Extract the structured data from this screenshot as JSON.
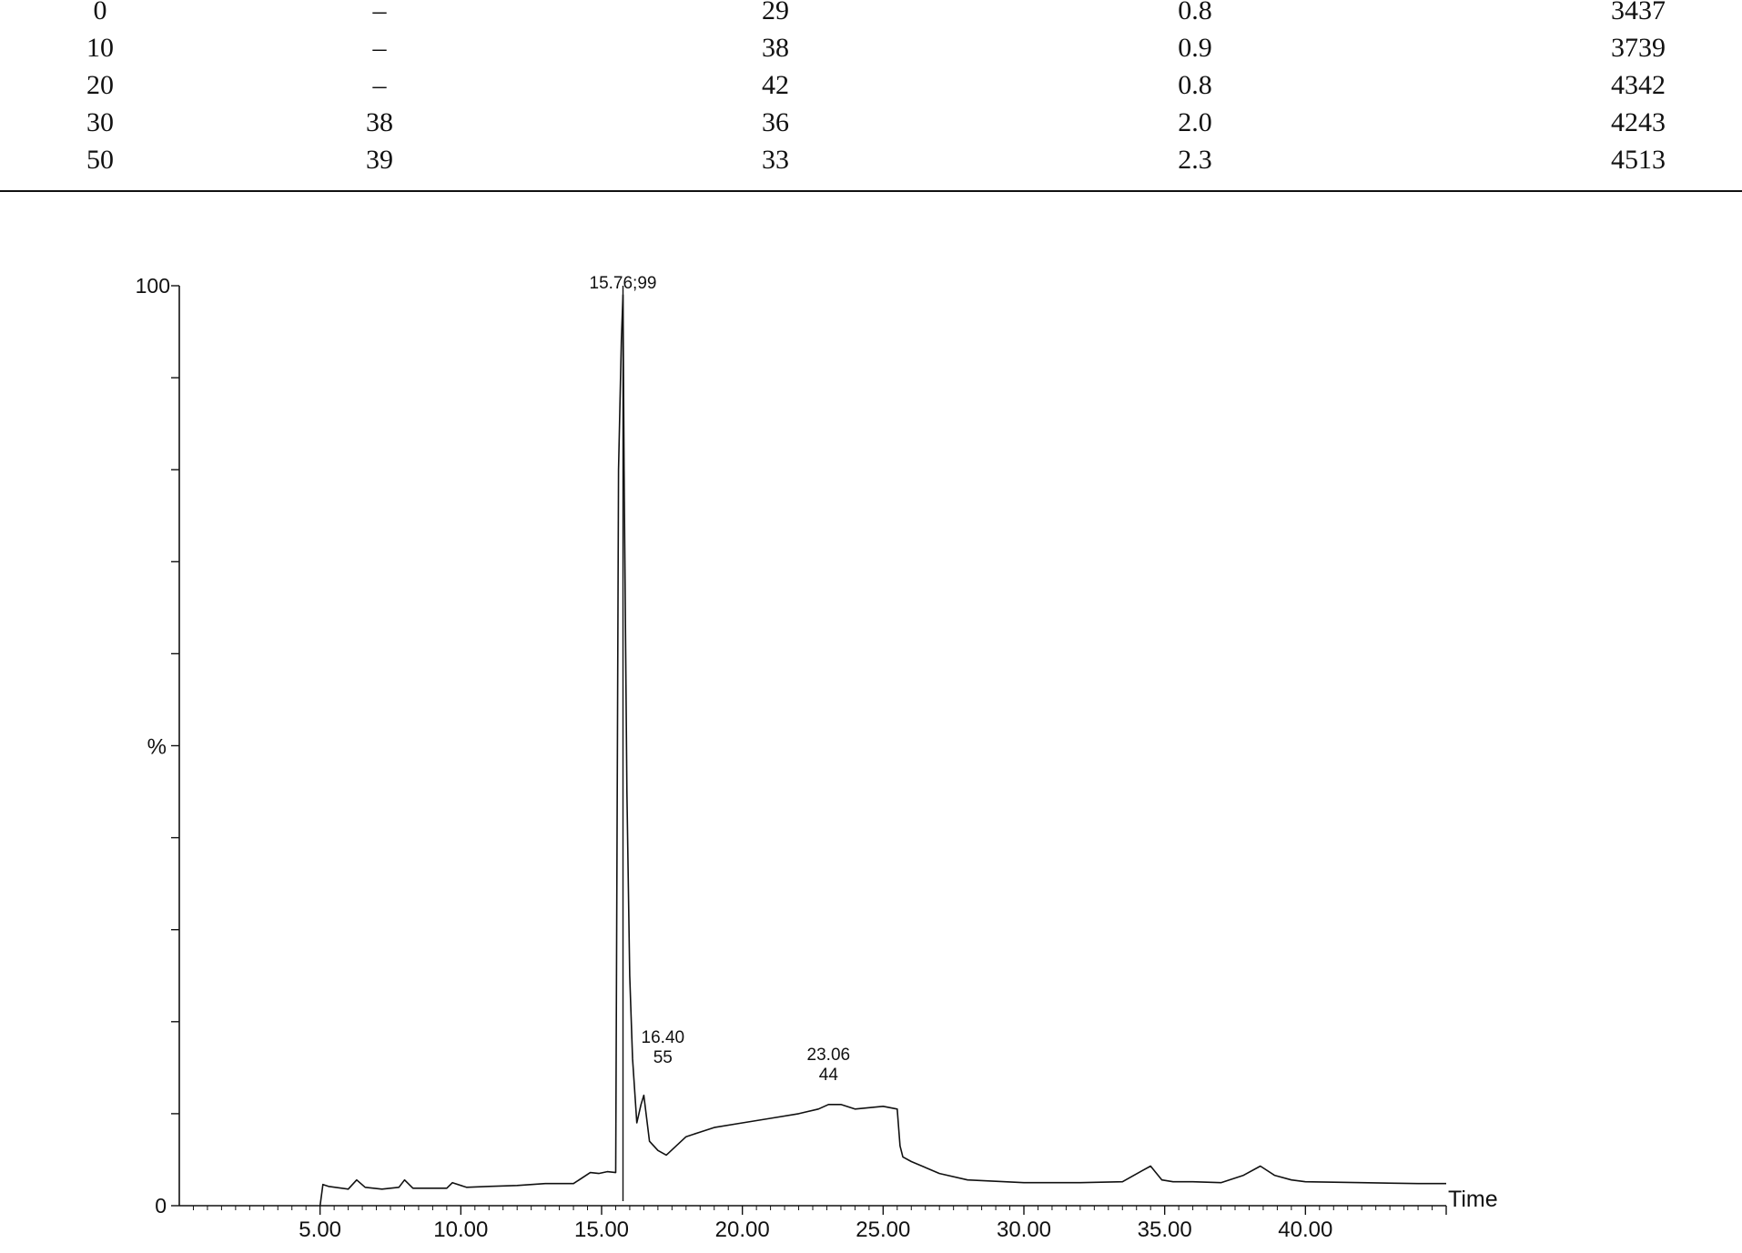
{
  "table": {
    "rows": [
      [
        "0",
        "–",
        "29",
        "0.8",
        "3437"
      ],
      [
        "10",
        "–",
        "38",
        "0.9",
        "3739"
      ],
      [
        "20",
        "–",
        "42",
        "0.8",
        "4342"
      ],
      [
        "30",
        "38",
        "36",
        "2.0",
        "4243"
      ],
      [
        "50",
        "39",
        "33",
        "2.3",
        "4513"
      ]
    ]
  },
  "chart_data": {
    "type": "line",
    "title": "",
    "xlabel": "Time",
    "ylabel": "%",
    "xlim": [
      0,
      45
    ],
    "ylim": [
      0,
      100
    ],
    "x_ticks": [
      "5.00",
      "10.00",
      "15.00",
      "20.00",
      "25.00",
      "30.00",
      "35.00",
      "40.00"
    ],
    "y_ticks": [
      "0",
      "100"
    ],
    "grid": false,
    "series": [
      {
        "x": [
          5.0,
          5.1,
          5.3,
          6.0,
          6.3,
          6.6,
          7.2,
          7.8,
          8.0,
          8.3,
          9.5,
          9.7,
          10.2,
          11,
          12,
          13,
          14,
          14.6,
          14.9,
          15.2,
          15.5,
          15.6,
          15.7,
          15.76,
          15.8,
          15.9,
          16.0,
          16.1,
          16.25,
          16.4,
          16.5,
          16.7,
          17.0,
          17.3,
          18.0,
          18.5,
          19.0,
          20.0,
          21.0,
          22.0,
          22.7,
          23.06,
          23.5,
          24.0,
          25.0,
          25.5,
          25.6,
          25.7,
          26.0,
          27.0,
          28.0,
          30.0,
          32.0,
          33.5,
          34.2,
          34.5,
          34.9,
          35.3,
          36.0,
          37.0,
          37.8,
          38.4,
          38.9,
          39.5,
          40.0,
          42.0,
          44.0,
          45.0
        ],
        "y": [
          0,
          2.3,
          2.1,
          1.8,
          2.8,
          2.0,
          1.8,
          2.0,
          2.8,
          1.9,
          1.9,
          2.5,
          2.0,
          2.1,
          2.2,
          2.4,
          2.4,
          3.6,
          3.5,
          3.7,
          3.6,
          80,
          94,
          99,
          80,
          45,
          25,
          16,
          9,
          11,
          12,
          7,
          6,
          5.5,
          7.5,
          8,
          8.5,
          9,
          9.5,
          10,
          10.5,
          11,
          11,
          10.5,
          10.8,
          10.5,
          6.5,
          5.3,
          4.8,
          3.5,
          2.8,
          2.5,
          2.5,
          2.6,
          3.8,
          4.3,
          2.8,
          2.6,
          2.6,
          2.5,
          3.3,
          4.3,
          3.3,
          2.8,
          2.6,
          2.5,
          2.4,
          2.4
        ]
      }
    ],
    "annotations": [
      {
        "x": 15.76,
        "y": 99,
        "lines": [
          "15.76;99"
        ]
      },
      {
        "x": 16.4,
        "y": 11,
        "lines": [
          "16.40",
          "55"
        ]
      },
      {
        "x": 23.06,
        "y": 11,
        "lines": [
          "23.06",
          "44"
        ]
      }
    ]
  }
}
